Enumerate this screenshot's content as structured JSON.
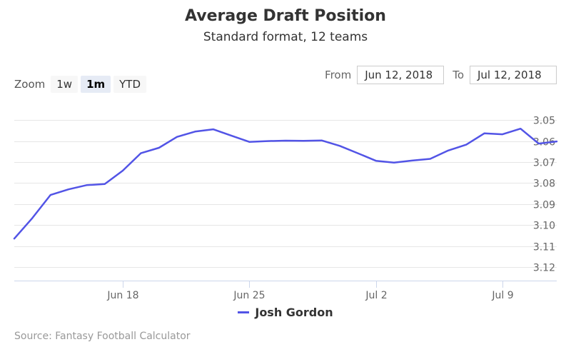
{
  "chart_data": {
    "type": "line",
    "title": "Average Draft Position",
    "subtitle": "Standard format, 12 teams",
    "y_ticks": [
      "3.05",
      "3.06",
      "3.07",
      "3.08",
      "3.09",
      "3.10",
      "3.11",
      "3.12"
    ],
    "x_ticks": [
      "Jun 18",
      "Jun 25",
      "Jul 2",
      "Jul 9"
    ],
    "ylim": [
      3.0445,
      3.1265
    ],
    "y_reversed": true,
    "grid": true,
    "legend_position": "bottom",
    "series": [
      {
        "name": "Josh Gordon",
        "color": "#5254e6",
        "x": [
          "Jun 12",
          "Jun 13",
          "Jun 14",
          "Jun 15",
          "Jun 16",
          "Jun 17",
          "Jun 18",
          "Jun 19",
          "Jun 20",
          "Jun 21",
          "Jun 22",
          "Jun 23",
          "Jun 24",
          "Jun 25",
          "Jun 26",
          "Jun 27",
          "Jun 28",
          "Jun 29",
          "Jun 30",
          "Jul 1",
          "Jul 2",
          "Jul 3",
          "Jul 4",
          "Jul 5",
          "Jul 6",
          "Jul 7",
          "Jul 8",
          "Jul 9",
          "Jul 10",
          "Jul 11",
          "Jul 12"
        ],
        "values": [
          3.1065,
          3.0967,
          3.0857,
          3.083,
          3.081,
          3.0805,
          3.0741,
          3.0658,
          3.0632,
          3.058,
          3.0555,
          3.0544,
          3.0574,
          3.0604,
          3.06,
          3.0598,
          3.0599,
          3.0597,
          3.0623,
          3.0658,
          3.0694,
          3.0703,
          3.0693,
          3.0685,
          3.0645,
          3.0617,
          3.0563,
          3.0568,
          3.0541,
          3.0612,
          3.0602
        ]
      }
    ]
  },
  "zoom": {
    "label": "Zoom",
    "buttons": [
      "1w",
      "1m",
      "YTD"
    ],
    "selected": "1m"
  },
  "range": {
    "from_label": "From",
    "from_value": "Jun 12, 2018",
    "to_label": "To",
    "to_value": "Jul 12, 2018"
  },
  "source": "Source: Fantasy Football Calculator"
}
